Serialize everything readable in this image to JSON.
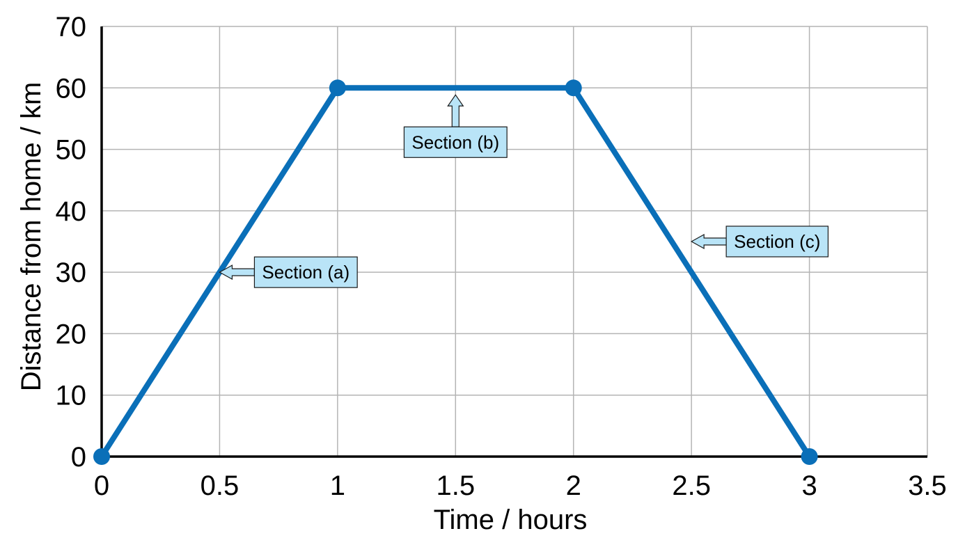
{
  "chart_data": {
    "type": "line",
    "xlabel": "Time / hours",
    "ylabel": "Distance from home / km",
    "xlim": [
      0,
      3.5
    ],
    "ylim": [
      0,
      70
    ],
    "x_ticks": [
      "0",
      "0.5",
      "1",
      "1.5",
      "2",
      "2.5",
      "3",
      "3.5"
    ],
    "y_ticks": [
      "0",
      "10",
      "20",
      "30",
      "40",
      "50",
      "60",
      "70"
    ],
    "grid": true,
    "series": [
      {
        "x": [
          0,
          1,
          2,
          3
        ],
        "y": [
          0,
          60,
          60,
          0
        ]
      }
    ],
    "annotations": [
      {
        "text": "Section (a)",
        "x": 0.5,
        "y": 30,
        "arrow": "left"
      },
      {
        "text": "Section (b)",
        "x": 1.5,
        "y": 60,
        "arrow": "up"
      },
      {
        "text": "Section (c)",
        "x": 2.5,
        "y": 35,
        "arrow": "left"
      }
    ],
    "colors": {
      "line": "#0a6fb8",
      "callout_fill": "#b9e4f7",
      "grid": "#b4b4b4"
    }
  }
}
